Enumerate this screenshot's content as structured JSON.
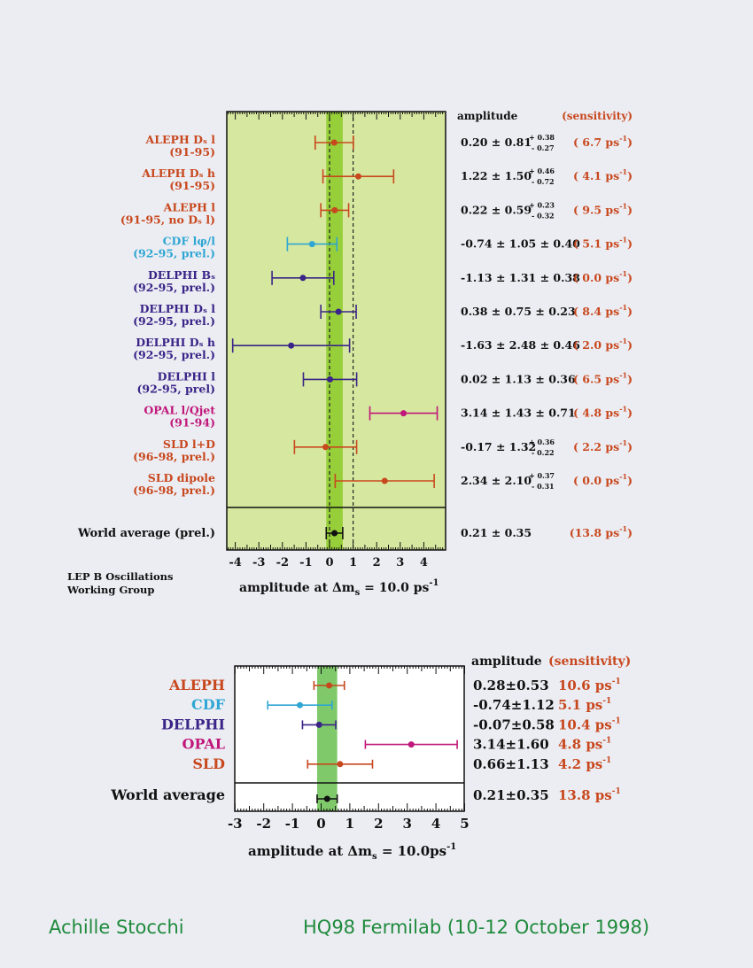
{
  "colors": {
    "orange": "#c8481e",
    "cyan": "#2fa6d3",
    "purple": "#3a2487",
    "magenta": "#c0177a",
    "black": "#111111",
    "panel": "#d6e89f",
    "band": "#97cf3a",
    "band2": "#7fc96a"
  },
  "chart_data": [
    {
      "type": "scatter",
      "subtype": "forest-plot",
      "title": "",
      "xlabel": "amplitude at Δm",
      "xlabel_sub": "s",
      "xlabel_rest": " = 10.0 ps",
      "xlabel_sup": "-1",
      "xlim": [
        -4.5,
        4.8
      ],
      "xticks": [
        "-4",
        "-3",
        "-2",
        "-1",
        "0",
        "1",
        "2",
        "3",
        "4"
      ],
      "dashed_lines": [
        0,
        1
      ],
      "band": [
        -0.14,
        0.56
      ],
      "column_headers": {
        "amplitude": "amplitude",
        "sensitivity": "(sensitivity)"
      },
      "credit": [
        "LEP B Oscillations",
        "Working Group"
      ],
      "legend": "none",
      "grid": false,
      "rows": [
        {
          "label": "ALEPH Dₛ l",
          "sublabel": "(91-95)",
          "color": "orange",
          "value": 0.2,
          "err_low": 0.81,
          "err_high": 0.81,
          "amp": "0.20 ± 0.81",
          "syst_up": "+ 0.38",
          "syst_dn": "- 0.27",
          "sens": "( 6.7 ps",
          "sens_exp": "-1",
          "sens_close": ")"
        },
        {
          "label": "ALEPH Dₛ h",
          "sublabel": "(91-95)",
          "color": "orange",
          "value": 1.22,
          "err_low": 1.5,
          "err_high": 1.5,
          "amp": "1.22 ± 1.50",
          "syst_up": "+ 0.46",
          "syst_dn": "- 0.72",
          "sens": "( 4.1 ps",
          "sens_exp": "-1",
          "sens_close": ")"
        },
        {
          "label": "ALEPH l",
          "sublabel": "(91-95, no Dₛ l)",
          "color": "orange",
          "value": 0.22,
          "err_low": 0.59,
          "err_high": 0.59,
          "amp": "0.22 ± 0.59",
          "syst_up": "+ 0.23",
          "syst_dn": "- 0.32",
          "sens": "( 9.5 ps",
          "sens_exp": "-1",
          "sens_close": ")"
        },
        {
          "label": "CDF lφ/l",
          "sublabel": "(92-95, prel.)",
          "color": "cyan",
          "value": -0.74,
          "err_low": 1.05,
          "err_high": 1.05,
          "amp": "-0.74 ± 1.05 ± 0.40",
          "syst_up": "",
          "syst_dn": "",
          "sens": "( 5.1 ps",
          "sens_exp": "-1",
          "sens_close": ")"
        },
        {
          "label": "DELPHI Bₛ",
          "sublabel": "(92-95, prel.)",
          "color": "purple",
          "value": -1.13,
          "err_low": 1.31,
          "err_high": 1.31,
          "amp": "-1.13 ± 1.31 ± 0.38",
          "syst_up": "",
          "syst_dn": "",
          "sens": "( 0.0 ps",
          "sens_exp": "-1",
          "sens_close": ")"
        },
        {
          "label": "DELPHI Dₛ l",
          "sublabel": "(92-95, prel.)",
          "color": "purple",
          "value": 0.38,
          "err_low": 0.75,
          "err_high": 0.75,
          "amp": "0.38 ± 0.75 ± 0.23",
          "syst_up": "",
          "syst_dn": "",
          "sens": "( 8.4 ps",
          "sens_exp": "-1",
          "sens_close": ")"
        },
        {
          "label": "DELPHI Dₛ h",
          "sublabel": "(92-95, prel.)",
          "color": "purple",
          "value": -1.63,
          "err_low": 2.48,
          "err_high": 2.48,
          "amp": "-1.63 ± 2.48 ± 0.46",
          "syst_up": "",
          "syst_dn": "",
          "sens": "( 2.0 ps",
          "sens_exp": "-1",
          "sens_close": ")"
        },
        {
          "label": "DELPHI l",
          "sublabel": "(92-95, prel)",
          "color": "purple",
          "value": 0.02,
          "err_low": 1.13,
          "err_high": 1.13,
          "amp": "0.02 ± 1.13 ± 0.36",
          "syst_up": "",
          "syst_dn": "",
          "sens": "( 6.5 ps",
          "sens_exp": "-1",
          "sens_close": ")"
        },
        {
          "label": "OPAL l/Qjet",
          "sublabel": "(91-94)",
          "color": "magenta",
          "value": 3.14,
          "err_low": 1.43,
          "err_high": 1.43,
          "amp": "3.14 ± 1.43 ± 0.71",
          "syst_up": "",
          "syst_dn": "",
          "sens": "( 4.8 ps",
          "sens_exp": "-1",
          "sens_close": ")"
        },
        {
          "label": "SLD l+D",
          "sublabel": "(96-98, prel.)",
          "color": "orange",
          "value": -0.17,
          "err_low": 1.32,
          "err_high": 1.32,
          "amp": "-0.17 ± 1.32",
          "syst_up": "+ 0.36",
          "syst_dn": "- 0.22",
          "sens": "( 2.2 ps",
          "sens_exp": "-1",
          "sens_close": ")"
        },
        {
          "label": "SLD dipole",
          "sublabel": "(96-98, prel.)",
          "color": "orange",
          "value": 2.34,
          "err_low": 2.1,
          "err_high": 2.1,
          "amp": "2.34 ± 2.10",
          "syst_up": "+ 0.37",
          "syst_dn": "- 0.31",
          "sens": "( 0.0 ps",
          "sens_exp": "-1",
          "sens_close": ")"
        }
      ],
      "average": {
        "label": "World average (prel.)",
        "color": "black",
        "value": 0.21,
        "err_low": 0.35,
        "err_high": 0.35,
        "amp": "0.21 ± 0.35",
        "sens": "(13.8 ps",
        "sens_exp": "-1",
        "sens_close": ")"
      }
    },
    {
      "type": "scatter",
      "subtype": "forest-plot",
      "title": "",
      "xlabel": "amplitude at Δm",
      "xlabel_sub": "s",
      "xlabel_rest": " = 10.0ps",
      "xlabel_sup": "-1",
      "xlim": [
        -3,
        5
      ],
      "xticks": [
        "-3",
        "-2",
        "-1",
        "0",
        "1",
        "2",
        "3",
        "4",
        "5"
      ],
      "band": [
        -0.14,
        0.56
      ],
      "column_headers": {
        "amplitude": "amplitude",
        "sensitivity": "(sensitivity)"
      },
      "legend": "none",
      "grid": false,
      "rows": [
        {
          "label": "ALEPH",
          "color": "orange",
          "value": 0.28,
          "err_low": 0.53,
          "err_high": 0.53,
          "amp": "0.28±0.53",
          "sens": "10.6 ps",
          "sens_exp": "-1"
        },
        {
          "label": "CDF",
          "color": "cyan",
          "value": -0.74,
          "err_low": 1.12,
          "err_high": 1.12,
          "amp": "-0.74±1.12",
          "sens": "5.1 ps",
          "sens_exp": "-1"
        },
        {
          "label": "DELPHI",
          "color": "purple",
          "value": -0.07,
          "err_low": 0.58,
          "err_high": 0.58,
          "amp": "-0.07±0.58",
          "sens": "10.4 ps",
          "sens_exp": "-1"
        },
        {
          "label": "OPAL",
          "color": "magenta",
          "value": 3.14,
          "err_low": 1.6,
          "err_high": 1.6,
          "amp": "3.14±1.60",
          "sens": "4.8 ps",
          "sens_exp": "-1"
        },
        {
          "label": "SLD",
          "color": "orange",
          "value": 0.66,
          "err_low": 1.13,
          "err_high": 1.13,
          "amp": "0.66±1.13",
          "sens": "4.2 ps",
          "sens_exp": "-1"
        }
      ],
      "average": {
        "label": "World average",
        "color": "black",
        "value": 0.21,
        "err_low": 0.35,
        "err_high": 0.35,
        "amp": "0.21±0.35",
        "sens": "13.8 ps",
        "sens_exp": "-1"
      }
    }
  ],
  "footer": {
    "author": "Achille Stocchi",
    "event": "HQ98 Fermilab (10-12 October 1998)"
  }
}
